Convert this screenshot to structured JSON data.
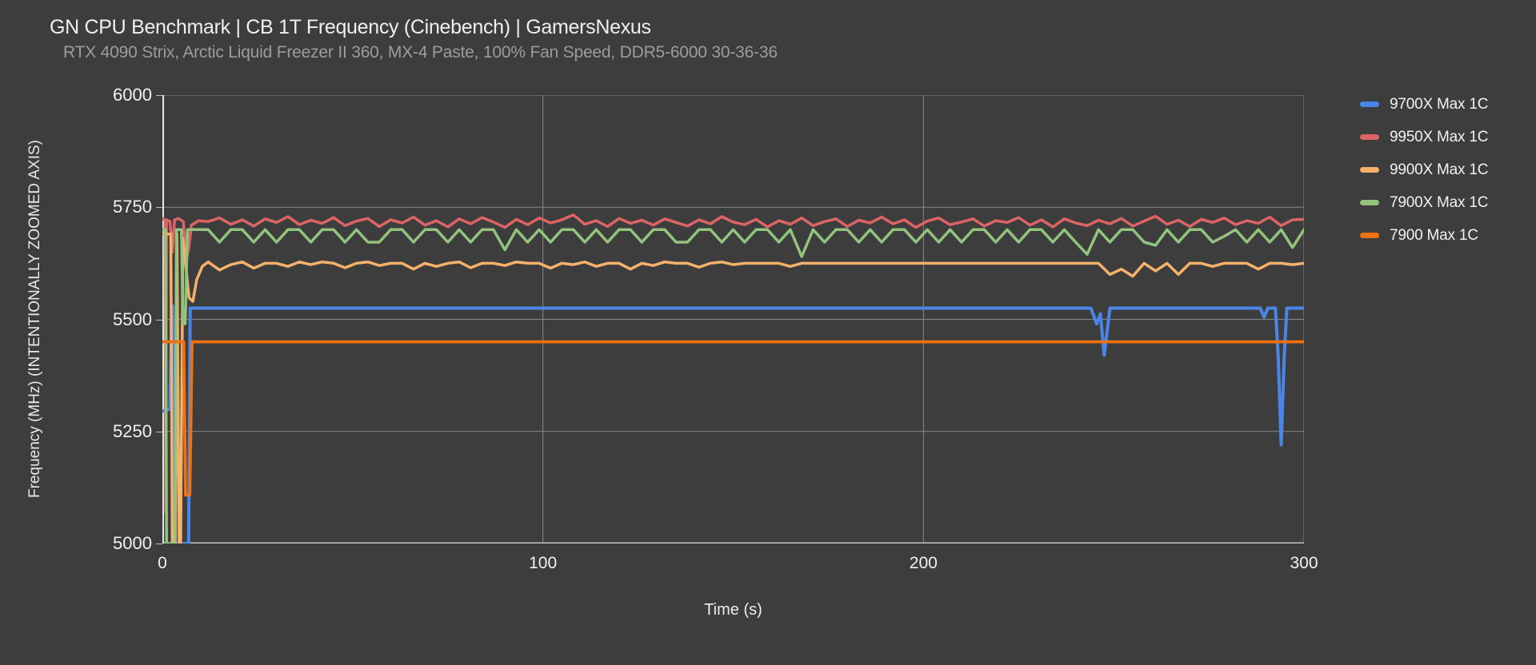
{
  "header": {
    "title": "GN CPU Benchmark | CB 1T Frequency (Cinebench) | GamersNexus",
    "subtitle": "RTX 4090 Strix, Arctic Liquid Freezer II 360, MX-4 Paste, 100% Fan Speed, DDR5-6000 30-36-36"
  },
  "colors": {
    "background": "#3d3d3e",
    "grid": "#8a8a8a",
    "axis_left": "#e6e6e6",
    "axis_bottom": "#c2c2c2",
    "text_primary": "#f1f1f1",
    "text_subtitle": "#9c9c9c"
  },
  "chart_data": {
    "type": "line",
    "title": "GN CPU Benchmark | CB 1T Frequency (Cinebench) | GamersNexus",
    "subtitle": "RTX 4090 Strix, Arctic Liquid Freezer II 360, MX-4 Paste, 100% Fan Speed, DDR5-6000 30-36-36",
    "xlabel": "Time (s)",
    "ylabel": "Frequency (MHz) (INTENTIONALLY ZOOMED AXIS)",
    "xlim": [
      0,
      300
    ],
    "ylim": [
      5000,
      6000
    ],
    "x_ticks": [
      0,
      100,
      200,
      300
    ],
    "y_ticks": [
      5000,
      5250,
      5500,
      5750,
      6000
    ],
    "grid": true,
    "legend_position": "right",
    "series": [
      {
        "name": "9700X Max 1C",
        "color": "#4a86e8",
        "stroke_width": 4,
        "segments": [
          {
            "x": [
              0,
              2,
              2.4,
              2.7,
              3.1,
              6.9,
              7.3,
              20,
              60,
              120,
              180,
              240,
              244,
              245.5,
              246.5,
              247.5,
              249,
              260,
              280,
              288.5,
              289.5,
              290.5,
              292.5,
              293.2,
              294,
              294.8,
              295.5,
              300
            ],
            "y": [
              5295,
              5300,
              5530,
              5530,
              5000,
              5000,
              5525,
              5525,
              5525,
              5525,
              5525,
              5525,
              5525,
              5490,
              5512,
              5420,
              5525,
              5525,
              5525,
              5525,
              5505,
              5525,
              5525,
              5420,
              5220,
              5420,
              5525,
              5525
            ]
          }
        ]
      },
      {
        "name": "9950X Max 1C",
        "color": "#dd6464",
        "stroke_width": 3.5,
        "segments": [
          {
            "x": [
              0,
              0.7,
              0.9,
              1.1,
              2,
              2.6,
              3.2,
              4.2,
              5.5,
              6.3,
              7,
              7.6,
              9.5
            ],
            "y": [
              5725,
              5722,
              5070,
              5722,
              5718,
              5650,
              5722,
              5725,
              5718,
              5632,
              5662,
              5710,
              5720
            ]
          },
          {
            "x_start": 12,
            "x_step": 3,
            "y": [
              5718,
              5726,
              5712,
              5722,
              5708,
              5724,
              5716,
              5729,
              5711,
              5721,
              5714,
              5727,
              5709,
              5719,
              5725,
              5707,
              5722,
              5715,
              5728,
              5710,
              5720,
              5706,
              5724,
              5713,
              5727,
              5717,
              5705,
              5723,
              5711,
              5726,
              5715,
              5722,
              5733,
              5712,
              5720,
              5707,
              5725,
              5714,
              5721,
              5710,
              5724,
              5716,
              5708,
              5722,
              5713,
              5729,
              5717,
              5711,
              5723,
              5706,
              5720,
              5712,
              5726,
              5709,
              5718,
              5724,
              5707,
              5721,
              5715,
              5728,
              5713,
              5722,
              5705,
              5719,
              5726,
              5711,
              5717,
              5724,
              5708,
              5720,
              5716,
              5727,
              5710,
              5722,
              5706,
              5724,
              5715,
              5709,
              5721,
              5713,
              5725,
              5708,
              5719,
              5730,
              5712,
              5721,
              5707,
              5723,
              5716,
              5726,
              5711,
              5720,
              5714,
              5728,
              5709,
              5722,
              5723
            ]
          }
        ]
      },
      {
        "name": "9900X Max 1C",
        "color": "#f6b26b",
        "stroke_width": 3.5,
        "segments": [
          {
            "x": [
              0,
              2.2,
              2.6,
              3.4,
              3.8,
              4.4,
              4.8,
              5.4,
              6.2,
              7,
              8,
              9,
              10.5
            ],
            "y": [
              5690,
              5690,
              5000,
              5000,
              5690,
              5000,
              5000,
              5680,
              5615,
              5548,
              5540,
              5588,
              5618
            ]
          },
          {
            "x_start": 12,
            "x_step": 3,
            "y": [
              5628,
              5610,
              5622,
              5628,
              5614,
              5625,
              5625,
              5618,
              5628,
              5622,
              5628,
              5625,
              5615,
              5625,
              5628,
              5620,
              5625,
              5625,
              5612,
              5625,
              5618,
              5625,
              5628,
              5615,
              5625,
              5625,
              5620,
              5628,
              5625,
              5625,
              5614,
              5625,
              5622,
              5628,
              5618,
              5625,
              5625,
              5612,
              5625,
              5620,
              5628,
              5625,
              5625,
              5616,
              5625,
              5628,
              5622,
              5625,
              5625,
              5625,
              5625,
              5618,
              5625,
              5625,
              5625,
              5625,
              5625,
              5625,
              5625,
              5625,
              5625,
              5625,
              5625,
              5625,
              5625,
              5625,
              5625,
              5625,
              5625,
              5625,
              5625,
              5625,
              5625,
              5625,
              5625,
              5625,
              5625,
              5625,
              5625,
              5600,
              5612,
              5596,
              5625,
              5608,
              5625,
              5600,
              5625,
              5625,
              5618,
              5625,
              5625,
              5625,
              5612,
              5625,
              5625,
              5622,
              5625
            ]
          }
        ]
      },
      {
        "name": "7900X Max 1C",
        "color": "#93c47d",
        "stroke_width": 3.5,
        "segments": [
          {
            "x": [
              0,
              0.8,
              1.1,
              3.3,
              3.7,
              5,
              5.4,
              6,
              6.6,
              9.5
            ],
            "y": [
              5700,
              5700,
              5000,
              5000,
              5700,
              5700,
              5490,
              5490,
              5700,
              5700
            ]
          },
          {
            "x_start": 12,
            "x_step": 3,
            "y": [
              5700,
              5672,
              5700,
              5700,
              5672,
              5700,
              5672,
              5700,
              5700,
              5672,
              5700,
              5700,
              5672,
              5700,
              5672,
              5672,
              5700,
              5700,
              5672,
              5700,
              5700,
              5672,
              5700,
              5672,
              5700,
              5700,
              5655,
              5700,
              5672,
              5700,
              5672,
              5700,
              5700,
              5672,
              5700,
              5672,
              5700,
              5700,
              5672,
              5700,
              5700,
              5672,
              5672,
              5700,
              5700,
              5672,
              5700,
              5672,
              5700,
              5700,
              5672,
              5700,
              5640,
              5700,
              5672,
              5700,
              5700,
              5672,
              5700,
              5672,
              5700,
              5700,
              5672,
              5700,
              5672,
              5700,
              5672,
              5700,
              5700,
              5672,
              5700,
              5672,
              5700,
              5700,
              5672,
              5700,
              5672,
              5645,
              5700,
              5672,
              5700,
              5700,
              5672,
              5665,
              5700,
              5672,
              5700,
              5700,
              5672,
              5685,
              5700,
              5672,
              5700,
              5672,
              5700,
              5660,
              5700
            ]
          }
        ]
      },
      {
        "name": "7900 Max 1C",
        "color": "#ee7112",
        "stroke_width": 3.8,
        "segments": [
          {
            "x": [
              0,
              5.6,
              6.1,
              7.2,
              7.8,
              20,
              60,
              120,
              180,
              240,
              300
            ],
            "y": [
              5450,
              5450,
              5108,
              5108,
              5450,
              5450,
              5450,
              5450,
              5450,
              5450,
              5450
            ]
          }
        ]
      }
    ]
  }
}
